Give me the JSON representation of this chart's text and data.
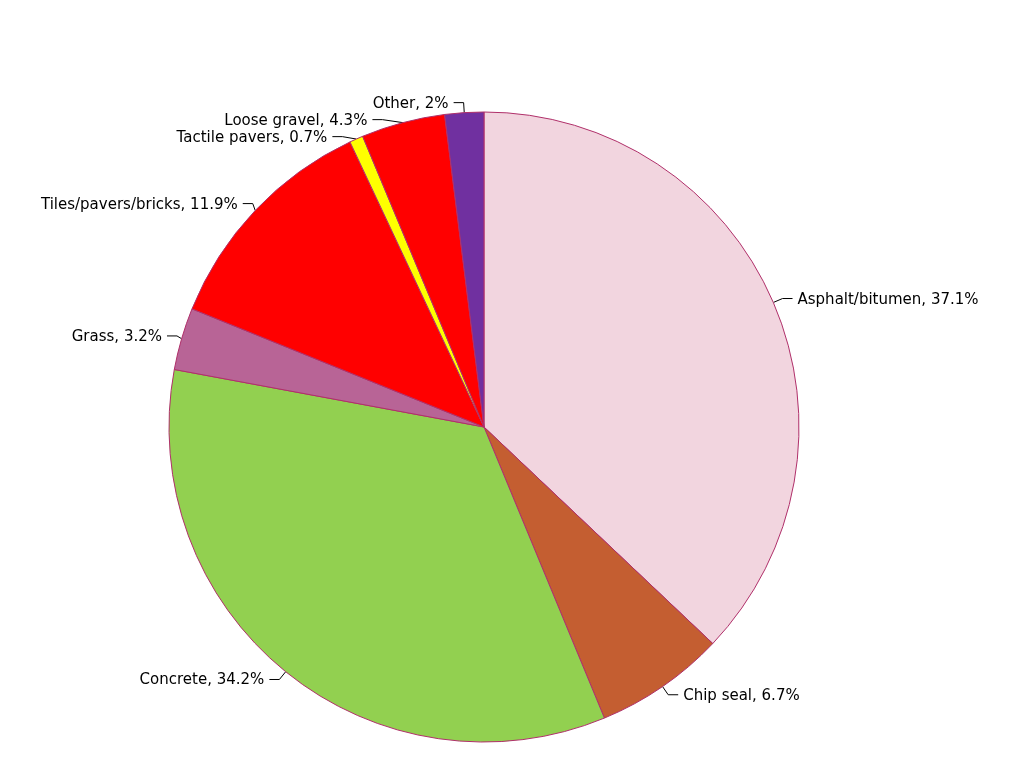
{
  "chart_data": {
    "type": "pie",
    "categories": [
      "Asphalt/bitumen",
      "Chip seal",
      "Concrete",
      "Grass",
      "Tiles/pavers/bricks",
      "Tactile pavers",
      "Loose gravel",
      "Other"
    ],
    "values": [
      37.1,
      6.7,
      34.2,
      3.2,
      11.9,
      0.7,
      4.3,
      2
    ],
    "value_labels": [
      "37.1%",
      "6.7%",
      "34.2%",
      "3.2%",
      "11.9%",
      "0.7%",
      "4.3%",
      "2%"
    ],
    "colors": [
      "#f2d5df",
      "#c45e31",
      "#92d050",
      "#b86496",
      "#ff0000",
      "#ffff00",
      "#ff0000",
      "#7030a0"
    ],
    "legend": false
  }
}
